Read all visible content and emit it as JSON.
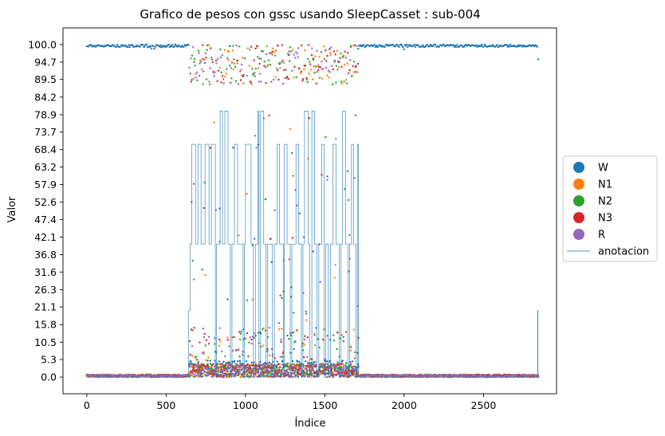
{
  "chart_data": {
    "type": "scatter",
    "title": "Grafico de pesos con gssc usando SleepCasset :  sub-004",
    "xlabel": "Índice",
    "ylabel": "Valor",
    "xlim": [
      -150,
      2960
    ],
    "ylim": [
      -5,
      105
    ],
    "xticks": [
      0,
      500,
      1000,
      1500,
      2000,
      2500
    ],
    "yticks": [
      "0.0",
      "5.3",
      "10.5",
      "15.8",
      "21.1",
      "26.3",
      "31.6",
      "36.8",
      "42.1",
      "47.4",
      "52.6",
      "57.9",
      "63.2",
      "68.4",
      "73.7",
      "78.9",
      "84.2",
      "89.5",
      "94.7",
      "100.0"
    ],
    "grid": false,
    "legend": {
      "placement": "outside-right",
      "entries": [
        {
          "label": "W",
          "color": "#1f77b4",
          "kind": "marker"
        },
        {
          "label": "N1",
          "color": "#ff7f0e",
          "kind": "marker"
        },
        {
          "label": "N2",
          "color": "#2ca02c",
          "kind": "marker"
        },
        {
          "label": "N3",
          "color": "#d62728",
          "kind": "marker"
        },
        {
          "label": "R",
          "color": "#9467bd",
          "kind": "marker"
        },
        {
          "label": "anotacion",
          "color": "#1f77b4",
          "kind": "line"
        }
      ]
    },
    "index_range": [
      0,
      2845
    ],
    "series": [
      {
        "name": "W",
        "color": "#1f77b4"
      },
      {
        "name": "N1",
        "color": "#ff7f0e"
      },
      {
        "name": "N2",
        "color": "#2ca02c"
      },
      {
        "name": "N3",
        "color": "#d62728"
      },
      {
        "name": "R",
        "color": "#9467bd"
      },
      {
        "name": "anotacion",
        "color": "#1f77b4",
        "steps": [
          [
            0,
            0
          ],
          [
            635,
            0
          ],
          [
            640,
            20
          ],
          [
            650,
            40
          ],
          [
            662,
            70
          ],
          [
            685,
            40
          ],
          [
            700,
            70
          ],
          [
            720,
            40
          ],
          [
            745,
            70
          ],
          [
            770,
            40
          ],
          [
            785,
            70
          ],
          [
            810,
            0
          ],
          [
            818,
            40
          ],
          [
            840,
            80
          ],
          [
            855,
            40
          ],
          [
            870,
            80
          ],
          [
            890,
            40
          ],
          [
            905,
            0
          ],
          [
            915,
            40
          ],
          [
            930,
            70
          ],
          [
            950,
            40
          ],
          [
            985,
            0
          ],
          [
            992,
            40
          ],
          [
            1000,
            70
          ],
          [
            1035,
            40
          ],
          [
            1050,
            0
          ],
          [
            1062,
            40
          ],
          [
            1078,
            80
          ],
          [
            1085,
            0
          ],
          [
            1095,
            80
          ],
          [
            1115,
            40
          ],
          [
            1130,
            0
          ],
          [
            1140,
            40
          ],
          [
            1170,
            0
          ],
          [
            1182,
            40
          ],
          [
            1200,
            70
          ],
          [
            1215,
            40
          ],
          [
            1238,
            0
          ],
          [
            1245,
            70
          ],
          [
            1262,
            40
          ],
          [
            1282,
            0
          ],
          [
            1292,
            40
          ],
          [
            1318,
            70
          ],
          [
            1335,
            40
          ],
          [
            1352,
            0
          ],
          [
            1362,
            40
          ],
          [
            1372,
            80
          ],
          [
            1395,
            40
          ],
          [
            1405,
            0
          ],
          [
            1418,
            80
          ],
          [
            1435,
            40
          ],
          [
            1450,
            0
          ],
          [
            1462,
            40
          ],
          [
            1480,
            70
          ],
          [
            1495,
            0
          ],
          [
            1505,
            40
          ],
          [
            1522,
            0
          ],
          [
            1535,
            40
          ],
          [
            1550,
            70
          ],
          [
            1570,
            40
          ],
          [
            1590,
            0
          ],
          [
            1600,
            40
          ],
          [
            1612,
            80
          ],
          [
            1630,
            40
          ],
          [
            1645,
            0
          ],
          [
            1655,
            40
          ],
          [
            1668,
            70
          ],
          [
            1680,
            40
          ],
          [
            1695,
            0
          ],
          [
            1705,
            70
          ],
          [
            1712,
            0
          ],
          [
            2838,
            0
          ],
          [
            2840,
            20
          ],
          [
            2842,
            0
          ],
          [
            2845,
            0
          ]
        ]
      }
    ]
  }
}
